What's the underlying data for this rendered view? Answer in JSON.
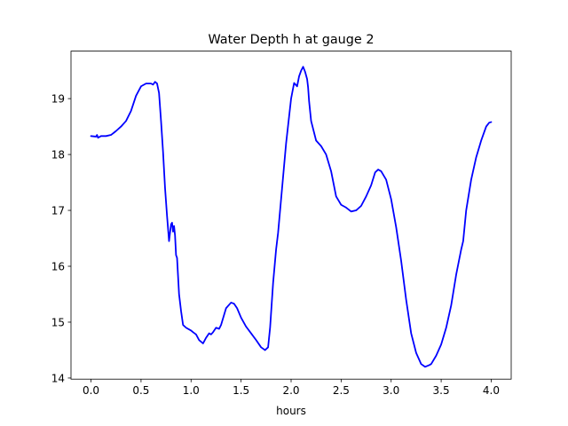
{
  "chart_data": {
    "type": "line",
    "title": "Water Depth h at gauge 2",
    "xlabel": "hours",
    "ylabel": "",
    "xlim": [
      -0.2,
      4.2
    ],
    "ylim": [
      13.98,
      19.85
    ],
    "xticks": [
      0.0,
      0.5,
      1.0,
      1.5,
      2.0,
      2.5,
      3.0,
      3.5,
      4.0
    ],
    "xtick_labels": [
      "0.0",
      "0.5",
      "1.0",
      "1.5",
      "2.0",
      "2.5",
      "3.0",
      "3.5",
      "4.0"
    ],
    "yticks": [
      14,
      15,
      16,
      17,
      18,
      19
    ],
    "ytick_labels": [
      "14",
      "15",
      "16",
      "17",
      "18",
      "19"
    ],
    "grid": false,
    "series": [
      {
        "color": "#0000ff",
        "x": [
          0.0,
          0.05,
          0.06,
          0.07,
          0.1,
          0.15,
          0.2,
          0.25,
          0.3,
          0.35,
          0.4,
          0.45,
          0.5,
          0.55,
          0.6,
          0.62,
          0.64,
          0.66,
          0.68,
          0.7,
          0.72,
          0.74,
          0.76,
          0.78,
          0.8,
          0.81,
          0.82,
          0.83,
          0.84,
          0.85,
          0.86,
          0.88,
          0.9,
          0.92,
          0.95,
          1.0,
          1.02,
          1.05,
          1.08,
          1.12,
          1.15,
          1.18,
          1.2,
          1.22,
          1.25,
          1.28,
          1.3,
          1.35,
          1.4,
          1.43,
          1.46,
          1.5,
          1.55,
          1.6,
          1.65,
          1.7,
          1.74,
          1.77,
          1.79,
          1.82,
          1.85,
          1.87,
          1.9,
          1.95,
          2.0,
          2.03,
          2.06,
          2.08,
          2.1,
          2.12,
          2.14,
          2.16,
          2.17,
          2.18,
          2.2,
          2.25,
          2.3,
          2.35,
          2.4,
          2.45,
          2.5,
          2.55,
          2.6,
          2.65,
          2.7,
          2.75,
          2.8,
          2.84,
          2.87,
          2.9,
          2.95,
          3.0,
          3.05,
          3.1,
          3.15,
          3.2,
          3.25,
          3.3,
          3.34,
          3.38,
          3.4,
          3.45,
          3.5,
          3.55,
          3.6,
          3.65,
          3.7,
          3.72,
          3.75,
          3.8,
          3.85,
          3.9,
          3.95,
          3.98,
          4.0
        ],
        "y": [
          18.33,
          18.32,
          18.35,
          18.3,
          18.33,
          18.33,
          18.35,
          18.42,
          18.5,
          18.6,
          18.78,
          19.05,
          19.22,
          19.27,
          19.27,
          19.25,
          19.3,
          19.27,
          19.1,
          18.6,
          18.05,
          17.4,
          16.9,
          16.45,
          16.75,
          16.78,
          16.62,
          16.72,
          16.55,
          16.2,
          16.15,
          15.5,
          15.2,
          14.95,
          14.9,
          14.85,
          14.82,
          14.78,
          14.68,
          14.62,
          14.72,
          14.8,
          14.78,
          14.82,
          14.9,
          14.88,
          14.95,
          15.25,
          15.35,
          15.33,
          15.25,
          15.08,
          14.92,
          14.8,
          14.68,
          14.55,
          14.5,
          14.55,
          14.9,
          15.7,
          16.3,
          16.6,
          17.2,
          18.2,
          19.0,
          19.28,
          19.22,
          19.4,
          19.5,
          19.57,
          19.48,
          19.35,
          19.2,
          18.95,
          18.6,
          18.25,
          18.15,
          18.0,
          17.7,
          17.25,
          17.1,
          17.05,
          16.98,
          17.0,
          17.08,
          17.25,
          17.45,
          17.68,
          17.73,
          17.7,
          17.55,
          17.2,
          16.7,
          16.1,
          15.4,
          14.8,
          14.45,
          14.25,
          14.2,
          14.23,
          14.25,
          14.4,
          14.6,
          14.9,
          15.3,
          15.85,
          16.3,
          16.45,
          17.0,
          17.55,
          17.95,
          18.25,
          18.5,
          18.57,
          18.58
        ]
      }
    ]
  }
}
